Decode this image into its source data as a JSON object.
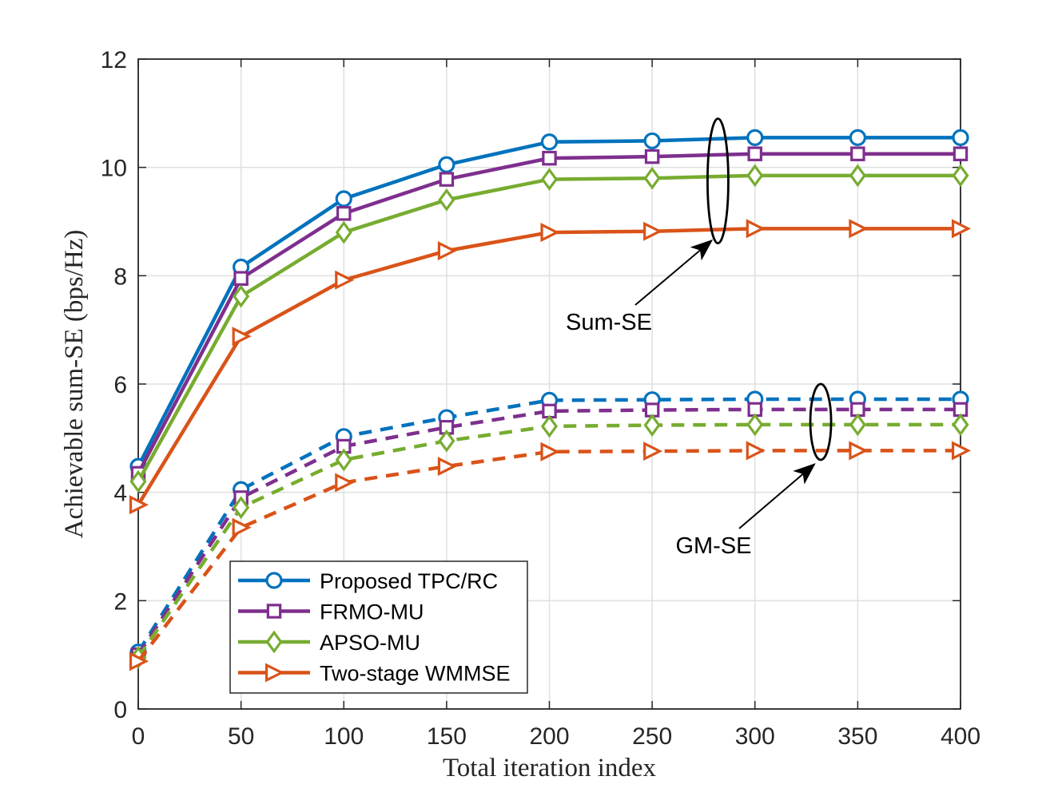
{
  "chart_data": {
    "type": "line",
    "title": "",
    "xlabel": "Total iteration index",
    "ylabel": "Achievable sum-SE (bps/Hz)",
    "xlim": [
      0,
      400
    ],
    "ylim": [
      0,
      12
    ],
    "xticks": [
      0,
      50,
      100,
      150,
      200,
      250,
      300,
      350,
      400
    ],
    "yticks": [
      0,
      2,
      4,
      6,
      8,
      10,
      12
    ],
    "grid": true,
    "legend_position": "bottom-left",
    "x": [
      0,
      50,
      100,
      150,
      200,
      250,
      300,
      350,
      400
    ],
    "series": [
      {
        "name": "Proposed TPC/RC",
        "group": "Sum-SE",
        "style": "solid",
        "marker": "circle",
        "color": "#0072BD",
        "values": [
          4.48,
          8.16,
          9.42,
          10.05,
          10.47,
          10.49,
          10.55,
          10.55,
          10.55
        ]
      },
      {
        "name": "FRMO-MU",
        "group": "Sum-SE",
        "style": "solid",
        "marker": "square",
        "color": "#7E2F8E",
        "values": [
          4.35,
          7.95,
          9.15,
          9.78,
          10.17,
          10.2,
          10.25,
          10.25,
          10.25
        ]
      },
      {
        "name": "APSO-MU",
        "group": "Sum-SE",
        "style": "solid",
        "marker": "diamond",
        "color": "#77AC30",
        "values": [
          4.2,
          7.62,
          8.8,
          9.4,
          9.78,
          9.8,
          9.85,
          9.85,
          9.85
        ]
      },
      {
        "name": "Two-stage WMMSE",
        "group": "Sum-SE",
        "style": "solid",
        "marker": "triangle-right",
        "color": "#D95319",
        "values": [
          3.77,
          6.88,
          7.92,
          8.46,
          8.8,
          8.82,
          8.87,
          8.87,
          8.87
        ]
      },
      {
        "name": "Proposed TPC/RC",
        "group": "GM-SE",
        "style": "dashed",
        "marker": "circle",
        "color": "#0072BD",
        "values": [
          1.05,
          4.05,
          5.03,
          5.38,
          5.7,
          5.71,
          5.72,
          5.72,
          5.72
        ]
      },
      {
        "name": "FRMO-MU",
        "group": "GM-SE",
        "style": "dashed",
        "marker": "square",
        "color": "#7E2F8E",
        "values": [
          1.0,
          3.9,
          4.85,
          5.2,
          5.5,
          5.52,
          5.53,
          5.53,
          5.53
        ]
      },
      {
        "name": "APSO-MU",
        "group": "GM-SE",
        "style": "dashed",
        "marker": "diamond",
        "color": "#77AC30",
        "values": [
          0.95,
          3.72,
          4.6,
          4.95,
          5.22,
          5.24,
          5.25,
          5.25,
          5.25
        ]
      },
      {
        "name": "Two-stage WMMSE",
        "group": "GM-SE",
        "style": "dashed",
        "marker": "triangle-right",
        "color": "#D95319",
        "values": [
          0.88,
          3.35,
          4.18,
          4.48,
          4.75,
          4.76,
          4.77,
          4.77,
          4.77
        ]
      }
    ],
    "legend": [
      "Proposed TPC/RC",
      "FRMO-MU",
      "APSO-MU",
      "Two-stage WMMSE"
    ],
    "annotations": [
      {
        "text": "Sum-SE",
        "ellipse_center": [
          282,
          9.7
        ],
        "ellipse_y_range": [
          8.6,
          10.9
        ],
        "arrow_to": [
          277,
          8.65
        ]
      },
      {
        "text": "GM-SE",
        "ellipse_center": [
          332,
          5.2
        ],
        "ellipse_y_range": [
          4.6,
          6.0
        ],
        "arrow_to": [
          327,
          4.52
        ]
      }
    ]
  }
}
